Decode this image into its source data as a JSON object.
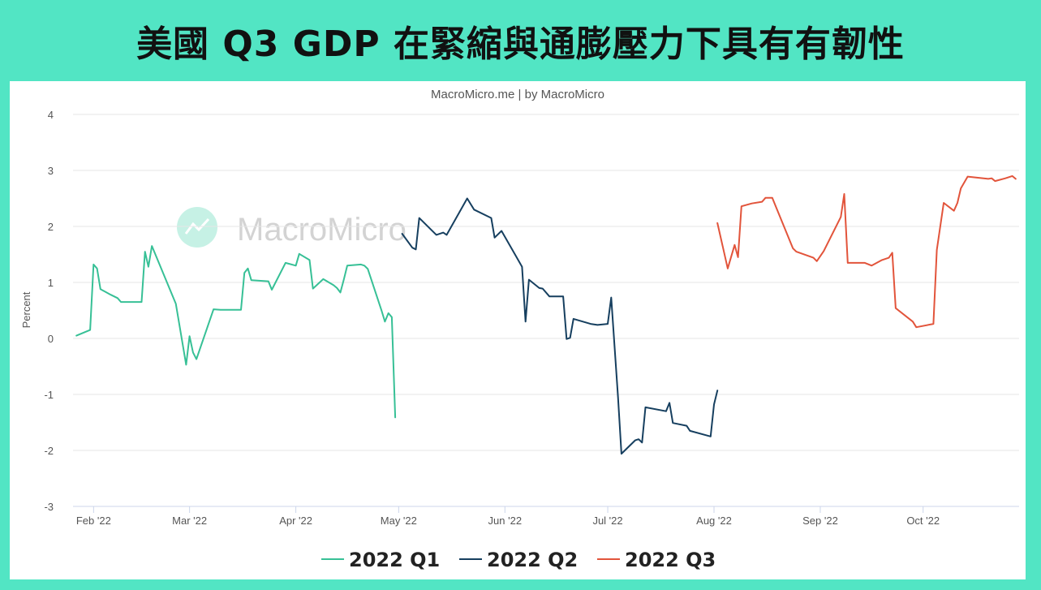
{
  "title": "美國 Q3 GDP 在緊縮與通膨壓力下具有有韌性",
  "credit": "MacroMicro.me | by MacroMicro",
  "watermark": "MacroMicro",
  "chart_data": {
    "type": "line",
    "ylabel": "Percent",
    "ylim": [
      -3,
      4
    ],
    "yticks": [
      4,
      3,
      2,
      1,
      0,
      -1,
      -2,
      -3
    ],
    "x_axis": {
      "type": "date",
      "range": [
        "2022-01-26",
        "2022-10-29"
      ],
      "ticks": [
        {
          "date": "2022-02-01",
          "label": "Feb '22"
        },
        {
          "date": "2022-03-01",
          "label": "Mar '22"
        },
        {
          "date": "2022-04-01",
          "label": "Apr '22"
        },
        {
          "date": "2022-05-01",
          "label": "May '22"
        },
        {
          "date": "2022-06-01",
          "label": "Jun '22"
        },
        {
          "date": "2022-07-01",
          "label": "Jul '22"
        },
        {
          "date": "2022-08-01",
          "label": "Aug '22"
        },
        {
          "date": "2022-09-01",
          "label": "Sep '22"
        },
        {
          "date": "2022-10-01",
          "label": "Oct '22"
        }
      ]
    },
    "grid": "horizontal",
    "legend_position": "bottom-center",
    "series": [
      {
        "name": "2022 Q1",
        "color": "#37c096",
        "points": [
          [
            "2022-01-27",
            0.05
          ],
          [
            "2022-01-31",
            0.15
          ],
          [
            "2022-02-01",
            1.32
          ],
          [
            "2022-02-02",
            1.25
          ],
          [
            "2022-02-03",
            0.88
          ],
          [
            "2022-02-06",
            0.78
          ],
          [
            "2022-02-08",
            0.72
          ],
          [
            "2022-02-09",
            0.65
          ],
          [
            "2022-02-15",
            0.65
          ],
          [
            "2022-02-16",
            1.55
          ],
          [
            "2022-02-17",
            1.28
          ],
          [
            "2022-02-18",
            1.65
          ],
          [
            "2022-02-25",
            0.62
          ],
          [
            "2022-02-28",
            -0.47
          ],
          [
            "2022-03-01",
            0.04
          ],
          [
            "2022-03-02",
            -0.25
          ],
          [
            "2022-03-03",
            -0.37
          ],
          [
            "2022-03-08",
            0.52
          ],
          [
            "2022-03-10",
            0.51
          ],
          [
            "2022-03-16",
            0.51
          ],
          [
            "2022-03-17",
            1.17
          ],
          [
            "2022-03-18",
            1.25
          ],
          [
            "2022-03-19",
            1.04
          ],
          [
            "2022-03-24",
            1.02
          ],
          [
            "2022-03-25",
            0.87
          ],
          [
            "2022-03-29",
            1.35
          ],
          [
            "2022-04-01",
            1.3
          ],
          [
            "2022-04-02",
            1.51
          ],
          [
            "2022-04-05",
            1.4
          ],
          [
            "2022-04-06",
            0.89
          ],
          [
            "2022-04-09",
            1.06
          ],
          [
            "2022-04-12",
            0.95
          ],
          [
            "2022-04-13",
            0.9
          ],
          [
            "2022-04-14",
            0.82
          ],
          [
            "2022-04-15",
            1.05
          ],
          [
            "2022-04-16",
            1.3
          ],
          [
            "2022-04-20",
            1.32
          ],
          [
            "2022-04-21",
            1.3
          ],
          [
            "2022-04-22",
            1.24
          ],
          [
            "2022-04-26",
            0.5
          ],
          [
            "2022-04-27",
            0.3
          ],
          [
            "2022-04-28",
            0.45
          ],
          [
            "2022-04-29",
            0.38
          ],
          [
            "2022-04-30",
            -1.41
          ]
        ]
      },
      {
        "name": "2022 Q2",
        "color": "#163f5f",
        "points": [
          [
            "2022-05-02",
            1.87
          ],
          [
            "2022-05-05",
            1.62
          ],
          [
            "2022-05-06",
            1.59
          ],
          [
            "2022-05-07",
            2.15
          ],
          [
            "2022-05-12",
            1.85
          ],
          [
            "2022-05-14",
            1.89
          ],
          [
            "2022-05-15",
            1.85
          ],
          [
            "2022-05-21",
            2.5
          ],
          [
            "2022-05-23",
            2.3
          ],
          [
            "2022-05-28",
            2.15
          ],
          [
            "2022-05-29",
            1.8
          ],
          [
            "2022-05-31",
            1.92
          ],
          [
            "2022-06-06",
            1.28
          ],
          [
            "2022-06-07",
            0.3
          ],
          [
            "2022-06-08",
            1.05
          ],
          [
            "2022-06-11",
            0.9
          ],
          [
            "2022-06-12",
            0.89
          ],
          [
            "2022-06-14",
            0.75
          ],
          [
            "2022-06-18",
            0.75
          ],
          [
            "2022-06-19",
            -0.01
          ],
          [
            "2022-06-20",
            0.01
          ],
          [
            "2022-06-21",
            0.35
          ],
          [
            "2022-06-26",
            0.26
          ],
          [
            "2022-06-28",
            0.24
          ],
          [
            "2022-07-01",
            0.26
          ],
          [
            "2022-07-02",
            0.73
          ],
          [
            "2022-07-04",
            -1.05
          ],
          [
            "2022-07-05",
            -2.06
          ],
          [
            "2022-07-09",
            -1.82
          ],
          [
            "2022-07-10",
            -1.8
          ],
          [
            "2022-07-11",
            -1.86
          ],
          [
            "2022-07-12",
            -1.23
          ],
          [
            "2022-07-18",
            -1.3
          ],
          [
            "2022-07-19",
            -1.15
          ],
          [
            "2022-07-20",
            -1.51
          ],
          [
            "2022-07-24",
            -1.56
          ],
          [
            "2022-07-25",
            -1.65
          ],
          [
            "2022-07-31",
            -1.75
          ],
          [
            "2022-08-01",
            -1.18
          ],
          [
            "2022-08-02",
            -0.93
          ]
        ]
      },
      {
        "name": "2022 Q3",
        "color": "#e2543b",
        "points": [
          [
            "2022-08-02",
            2.06
          ],
          [
            "2022-08-05",
            1.25
          ],
          [
            "2022-08-07",
            1.67
          ],
          [
            "2022-08-08",
            1.45
          ],
          [
            "2022-08-09",
            2.36
          ],
          [
            "2022-08-12",
            2.41
          ],
          [
            "2022-08-15",
            2.44
          ],
          [
            "2022-08-16",
            2.51
          ],
          [
            "2022-08-18",
            2.51
          ],
          [
            "2022-08-24",
            1.61
          ],
          [
            "2022-08-25",
            1.55
          ],
          [
            "2022-08-30",
            1.44
          ],
          [
            "2022-08-31",
            1.38
          ],
          [
            "2022-09-02",
            1.56
          ],
          [
            "2022-09-07",
            2.17
          ],
          [
            "2022-09-08",
            2.58
          ],
          [
            "2022-09-09",
            1.35
          ],
          [
            "2022-09-13",
            1.35
          ],
          [
            "2022-09-14",
            1.35
          ],
          [
            "2022-09-16",
            1.3
          ],
          [
            "2022-09-19",
            1.4
          ],
          [
            "2022-09-21",
            1.44
          ],
          [
            "2022-09-22",
            1.53
          ],
          [
            "2022-09-23",
            0.54
          ],
          [
            "2022-09-28",
            0.3
          ],
          [
            "2022-09-29",
            0.2
          ],
          [
            "2022-10-04",
            0.26
          ],
          [
            "2022-10-05",
            1.58
          ],
          [
            "2022-10-07",
            2.42
          ],
          [
            "2022-10-10",
            2.28
          ],
          [
            "2022-10-11",
            2.42
          ],
          [
            "2022-10-12",
            2.68
          ],
          [
            "2022-10-14",
            2.89
          ],
          [
            "2022-10-20",
            2.85
          ],
          [
            "2022-10-21",
            2.86
          ],
          [
            "2022-10-22",
            2.81
          ],
          [
            "2022-10-25",
            2.86
          ],
          [
            "2022-10-27",
            2.9
          ],
          [
            "2022-10-28",
            2.85
          ]
        ]
      }
    ]
  }
}
